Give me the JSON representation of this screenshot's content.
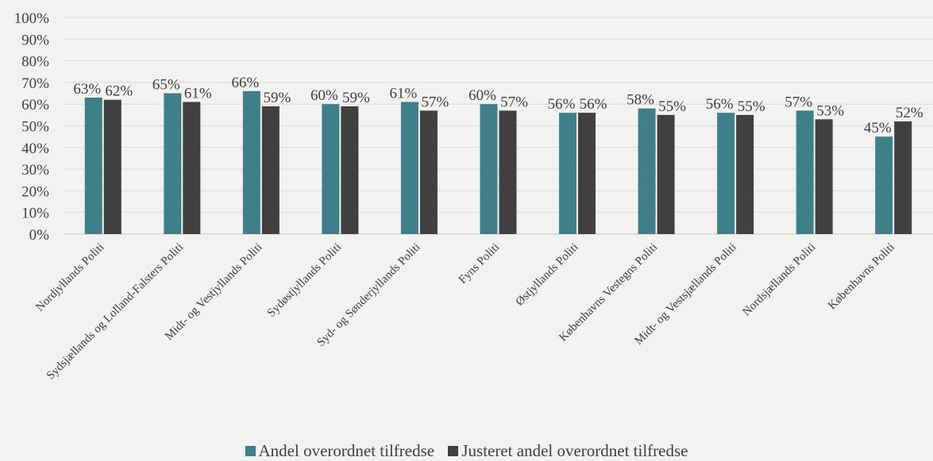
{
  "chart_data": {
    "type": "bar",
    "categories": [
      "Nordjyllands Politi",
      "Sydsjællands og Lolland-Falsters Politi",
      "Midt- og Vestjyllands Politi",
      "Sydøstjyllands Politi",
      "Syd- og Sønderjyllands Politi",
      "Fyns Politi",
      "Østjyllands Politi",
      "Københavns Vestegns Politi",
      "Midt- og Vestsjællands Politi",
      "Nordsjællands Politi",
      "Københavns Politi"
    ],
    "series": [
      {
        "name": "Andel overordnet tilfredse",
        "color": "#3e7f8a",
        "values": [
          63,
          65,
          66,
          60,
          61,
          60,
          56,
          58,
          56,
          57,
          45
        ],
        "labels": [
          "63%",
          "65%",
          "66%",
          "60%",
          "61%",
          "60%",
          "56%",
          "58%",
          "56%",
          "57%",
          "45%"
        ]
      },
      {
        "name": "Justeret andel overordnet tilfredse",
        "color": "#404040",
        "values": [
          62,
          61,
          59,
          59,
          57,
          57,
          56,
          55,
          55,
          53,
          52
        ],
        "labels": [
          "62%",
          "61%",
          "59%",
          "59%",
          "57%",
          "57%",
          "56%",
          "55%",
          "55%",
          "53%",
          "52%"
        ]
      }
    ],
    "y_ticks": [
      "0%",
      "10%",
      "20%",
      "30%",
      "40%",
      "50%",
      "60%",
      "70%",
      "80%",
      "90%",
      "100%"
    ],
    "ylim": [
      0,
      100
    ],
    "grid": true,
    "legend_position": "bottom"
  }
}
